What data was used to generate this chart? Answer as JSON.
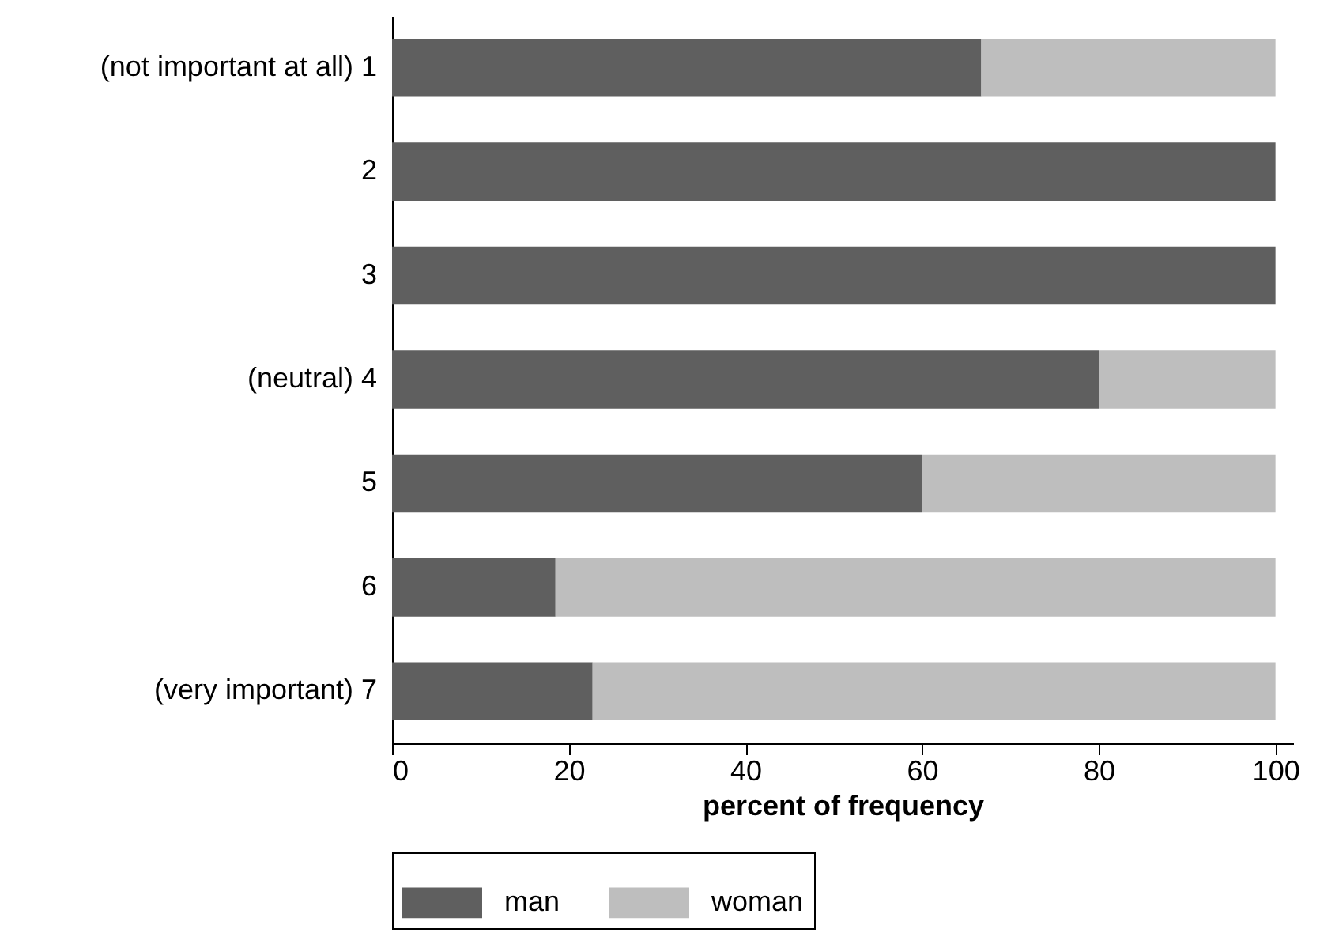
{
  "chart_data": {
    "type": "bar",
    "orientation": "horizontal",
    "stacked": true,
    "xlabel": "percent of frequency",
    "categories": [
      "(not important at all) 1",
      "2",
      "3",
      "(neutral) 4",
      "5",
      "6",
      "(very important) 7"
    ],
    "series": [
      {
        "name": "man",
        "color": "#5f5f5f",
        "values": [
          66.7,
          100,
          100,
          80,
          60,
          18.5,
          22.7
        ]
      },
      {
        "name": "woman",
        "color": "#bebebe",
        "values": [
          33.3,
          0,
          0,
          20,
          40,
          81.5,
          77.3
        ]
      }
    ],
    "xlim": [
      0,
      102
    ],
    "xticks": [
      0,
      20,
      40,
      60,
      80,
      100
    ],
    "grid": false,
    "legend": "bottom"
  }
}
